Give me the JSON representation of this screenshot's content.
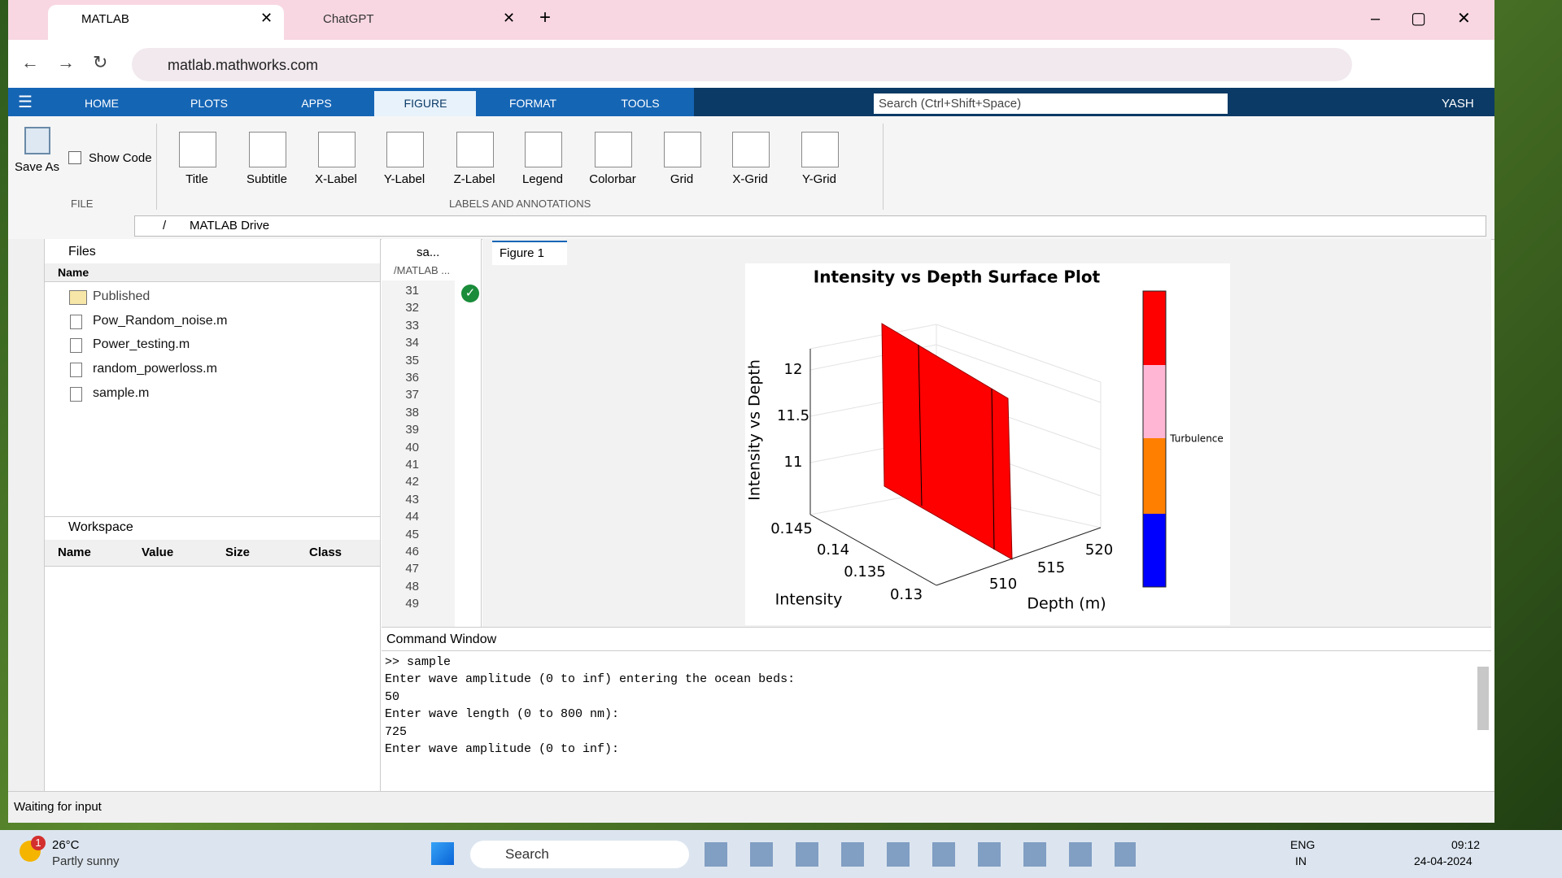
{
  "browser": {
    "tabs": [
      "MATLAB",
      "ChatGPT"
    ],
    "url": "matlab.mathworks.com"
  },
  "toolstrip": {
    "tabs": [
      "HOME",
      "PLOTS",
      "APPS",
      "FIGURE",
      "FORMAT",
      "TOOLS"
    ],
    "search": "Search (Ctrl+Shift+Space)",
    "user": "YASH"
  },
  "ribbon": {
    "save_as": "Save As",
    "show_code": "Show Code",
    "file_group": "FILE",
    "buttons": [
      "Title",
      "Subtitle",
      "X-Label",
      "Y-Label",
      "Z-Label",
      "Legend",
      "Colorbar",
      "Grid",
      "X-Grid",
      "Y-Grid"
    ],
    "group": "LABELS AND ANNOTATIONS"
  },
  "path": {
    "root": "/",
    "folder": "MATLAB Drive"
  },
  "files": {
    "title": "Files",
    "name_col": "Name",
    "items": [
      "Published",
      "Pow_Random_noise.m",
      "Power_testing.m",
      "random_powerloss.m",
      "sample.m"
    ]
  },
  "workspace": {
    "title": "Workspace",
    "columns": [
      "Name",
      "Value",
      "Size",
      "Class"
    ]
  },
  "editor": {
    "tab": "sa...",
    "path": "/MATLAB ...",
    "line_numbers": [
      "31",
      "32",
      "33",
      "34",
      "35",
      "36",
      "37",
      "38",
      "39",
      "40",
      "41",
      "42",
      "43",
      "44",
      "45",
      "46",
      "47",
      "48",
      "49"
    ]
  },
  "figure": {
    "tab": "Figure 1",
    "title": "Intensity vs Depth Surface Plot",
    "zlabel": "Intensity vs Depth",
    "xlabel": "Intensity",
    "ylabel": "Depth (m)",
    "zticks": [
      "12",
      "11.5",
      "11"
    ],
    "xticks": [
      "0.145",
      "0.14",
      "0.135",
      "0.13"
    ],
    "yticks": [
      "510",
      "515",
      "520"
    ],
    "colorbar_label": "Turbulence"
  },
  "command": {
    "title": "Command Window",
    "lines": [
      ">> sample",
      "Enter wave amplitude (0 to inf) entering the ocean beds:",
      "50",
      "Enter wave length (0 to 800 nm):",
      "725",
      "Enter wave amplitude (0 to inf):"
    ]
  },
  "status": "Waiting for input",
  "taskbar": {
    "badge": "1",
    "temp": "26°C",
    "weather": "Partly sunny",
    "search": "Search",
    "lang": "ENG",
    "region": "IN",
    "time": "09:12",
    "date": "24-04-2024"
  }
}
